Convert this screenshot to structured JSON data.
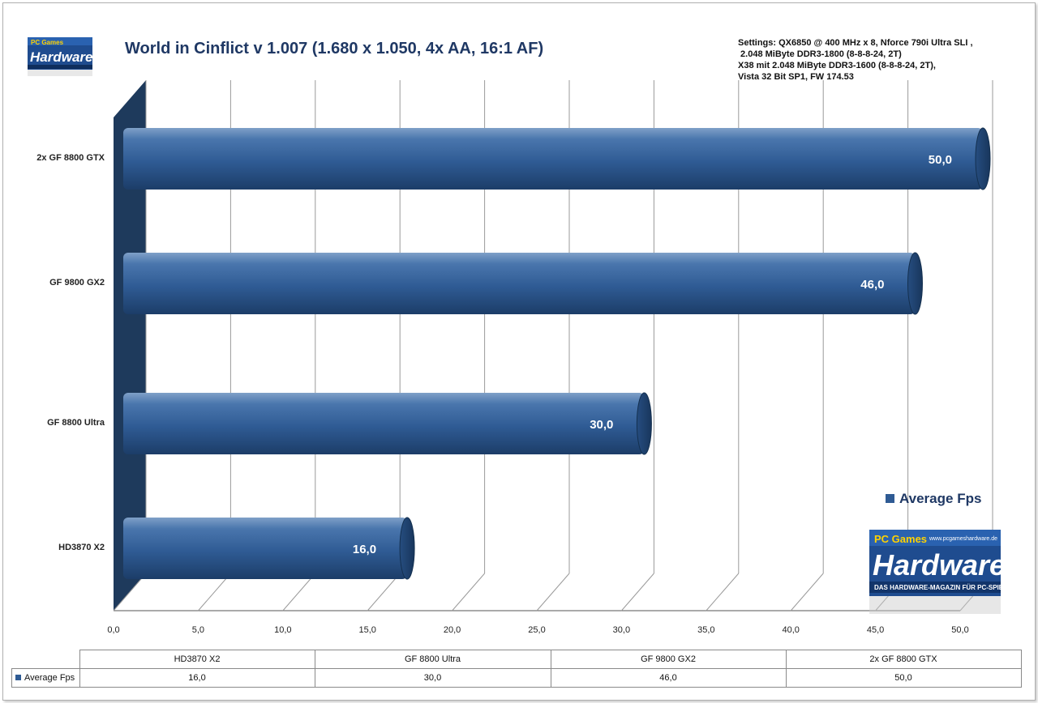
{
  "chart_data": {
    "type": "bar",
    "orientation": "horizontal",
    "title": "World in Cinflict v 1.007 (1.680 x 1.050, 4x AA, 16:1 AF)",
    "categories": [
      "HD3870  X2",
      "GF 8800  Ultra",
      "GF 9800  GX2",
      "2x GF 8800  GTX"
    ],
    "series": [
      {
        "name": "Average Fps",
        "values": [
          16.0,
          30.0,
          46.0,
          50.0
        ],
        "color": "#2f5b94"
      }
    ],
    "value_labels": [
      "16,0",
      "30,0",
      "46,0",
      "50,0"
    ],
    "xlim": [
      0,
      50
    ],
    "xticks": [
      "0,0",
      "5,0",
      "10,0",
      "15,0",
      "20,0",
      "25,0",
      "30,0",
      "35,0",
      "40,0",
      "45,0",
      "50,0"
    ],
    "grid": true,
    "legend_position": "right"
  },
  "settings_text": "Settings: QX6850 @ 400 MHz x 8, Nforce 790i Ultra SLI ,\n 2.048 MiByte DDR3-1800 (8-8-8-24, 2T)\nX38 mit 2.048 MiByte DDR3-1600 (8-8-8-24, 2T),\nVista 32 Bit SP1, FW 174.53",
  "data_table": {
    "headers": [
      "HD3870 X2",
      "GF 8800 Ultra",
      "GF 9800 GX2",
      "2x GF 8800 GTX"
    ],
    "row_label": "Average Fps",
    "values": [
      "16,0",
      "30,0",
      "46,0",
      "50,0"
    ]
  },
  "logo": {
    "brand_small": "PC Games",
    "brand": "Hardware",
    "url": "www.pcgameshardware.de",
    "tagline": "DAS HARDWARE-MAGAZIN FÜR PC-SPIELER"
  }
}
